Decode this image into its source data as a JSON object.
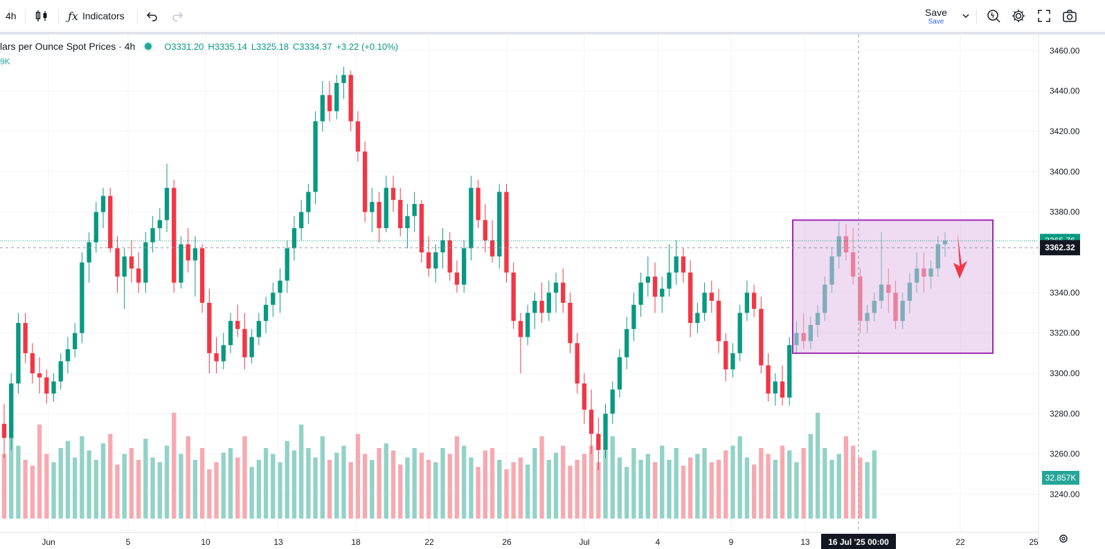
{
  "toolbar": {
    "interval": "4h",
    "indicators_label": "Indicators",
    "save_label": "Save",
    "save_sub": "Save"
  },
  "legend": {
    "symbol": "lars per Ounce Spot Prices · 4h",
    "open": "O3331.20",
    "high": "H3335.14",
    "low": "L3325.18",
    "close": "C3334.37",
    "change": "+3.22 (+0.10%)",
    "volume_fragment": "9K"
  },
  "colors": {
    "up": "#089981",
    "down": "#f23645",
    "vol_up": "#92d2c7",
    "vol_down": "#f7a9b0",
    "box_fill": "#e1bee7",
    "box_stroke": "#9c27b0",
    "arrow": "#f23645"
  },
  "chart_data": {
    "type": "candlestick",
    "title": "lars per Ounce Spot Prices · 4h",
    "ylim": [
      3228,
      3468
    ],
    "y_ticks": [
      "3460.00",
      "3440.00",
      "3420.00",
      "3400.00",
      "3380.00",
      "3360.00",
      "3340.00",
      "3320.00",
      "3300.00",
      "3280.00",
      "3260.00",
      "3240.00"
    ],
    "x_ticks": [
      "Jun",
      "5",
      "10",
      "13",
      "18",
      "22",
      "26",
      "Jul",
      "4",
      "9",
      "13",
      "22",
      "25"
    ],
    "last_price_label": "3365.76",
    "crosshair_price_label": "3362.32",
    "crosshair_date_label": "16 Jul '25   00:00",
    "volume_label": "32.857K",
    "last_price": 3365.76,
    "crosshair_price": 3362.32,
    "candles": [
      [
        3275,
        3285,
        3258,
        3268
      ],
      [
        3268,
        3300,
        3262,
        3295
      ],
      [
        3295,
        3330,
        3290,
        3325
      ],
      [
        3325,
        3330,
        3305,
        3310
      ],
      [
        3310,
        3315,
        3295,
        3300
      ],
      [
        3300,
        3308,
        3290,
        3298
      ],
      [
        3298,
        3302,
        3285,
        3290
      ],
      [
        3290,
        3300,
        3286,
        3296
      ],
      [
        3296,
        3310,
        3292,
        3306
      ],
      [
        3306,
        3318,
        3300,
        3312
      ],
      [
        3312,
        3325,
        3308,
        3320
      ],
      [
        3320,
        3360,
        3315,
        3355
      ],
      [
        3355,
        3370,
        3345,
        3365
      ],
      [
        3365,
        3385,
        3360,
        3380
      ],
      [
        3380,
        3392,
        3372,
        3388
      ],
      [
        3388,
        3392,
        3360,
        3362
      ],
      [
        3362,
        3368,
        3340,
        3348
      ],
      [
        3348,
        3362,
        3332,
        3358
      ],
      [
        3358,
        3366,
        3345,
        3352
      ],
      [
        3352,
        3360,
        3340,
        3345
      ],
      [
        3345,
        3370,
        3340,
        3365
      ],
      [
        3365,
        3378,
        3360,
        3372
      ],
      [
        3372,
        3382,
        3366,
        3376
      ],
      [
        3376,
        3404,
        3370,
        3392
      ],
      [
        3392,
        3396,
        3340,
        3345
      ],
      [
        3345,
        3368,
        3342,
        3364
      ],
      [
        3364,
        3372,
        3350,
        3356
      ],
      [
        3356,
        3368,
        3338,
        3362
      ],
      [
        3362,
        3364,
        3330,
        3335
      ],
      [
        3335,
        3342,
        3300,
        3310
      ],
      [
        3310,
        3318,
        3300,
        3306
      ],
      [
        3306,
        3320,
        3302,
        3314
      ],
      [
        3314,
        3330,
        3310,
        3326
      ],
      [
        3326,
        3334,
        3318,
        3322
      ],
      [
        3322,
        3330,
        3302,
        3308
      ],
      [
        3308,
        3322,
        3305,
        3318
      ],
      [
        3318,
        3330,
        3314,
        3326
      ],
      [
        3326,
        3338,
        3320,
        3334
      ],
      [
        3334,
        3345,
        3328,
        3340
      ],
      [
        3340,
        3352,
        3330,
        3346
      ],
      [
        3346,
        3366,
        3340,
        3362
      ],
      [
        3362,
        3378,
        3356,
        3372
      ],
      [
        3372,
        3386,
        3366,
        3380
      ],
      [
        3380,
        3394,
        3374,
        3390
      ],
      [
        3390,
        3430,
        3384,
        3425
      ],
      [
        3425,
        3445,
        3420,
        3438
      ],
      [
        3438,
        3445,
        3425,
        3430
      ],
      [
        3430,
        3448,
        3426,
        3444
      ],
      [
        3444,
        3452,
        3436,
        3448
      ],
      [
        3448,
        3450,
        3420,
        3425
      ],
      [
        3425,
        3430,
        3405,
        3410
      ],
      [
        3410,
        3415,
        3375,
        3380
      ],
      [
        3380,
        3392,
        3370,
        3385
      ],
      [
        3385,
        3390,
        3365,
        3372
      ],
      [
        3372,
        3398,
        3370,
        3392
      ],
      [
        3392,
        3398,
        3380,
        3386
      ],
      [
        3386,
        3392,
        3368,
        3372
      ],
      [
        3372,
        3384,
        3362,
        3378
      ],
      [
        3378,
        3390,
        3370,
        3384
      ],
      [
        3384,
        3386,
        3355,
        3360
      ],
      [
        3360,
        3368,
        3348,
        3352
      ],
      [
        3352,
        3364,
        3345,
        3360
      ],
      [
        3360,
        3372,
        3352,
        3366
      ],
      [
        3366,
        3370,
        3346,
        3350
      ],
      [
        3350,
        3356,
        3340,
        3344
      ],
      [
        3344,
        3366,
        3340,
        3362
      ],
      [
        3362,
        3398,
        3356,
        3392
      ],
      [
        3392,
        3396,
        3372,
        3376
      ],
      [
        3376,
        3384,
        3360,
        3366
      ],
      [
        3366,
        3376,
        3355,
        3358
      ],
      [
        3358,
        3394,
        3352,
        3390
      ],
      [
        3390,
        3394,
        3345,
        3350
      ],
      [
        3350,
        3355,
        3322,
        3326
      ],
      [
        3326,
        3330,
        3300,
        3318
      ],
      [
        3318,
        3334,
        3314,
        3330
      ],
      [
        3330,
        3340,
        3322,
        3336
      ],
      [
        3336,
        3345,
        3325,
        3330
      ],
      [
        3330,
        3346,
        3326,
        3340
      ],
      [
        3340,
        3350,
        3330,
        3345
      ],
      [
        3345,
        3352,
        3330,
        3335
      ],
      [
        3335,
        3340,
        3310,
        3315
      ],
      [
        3315,
        3320,
        3290,
        3295
      ],
      [
        3295,
        3300,
        3275,
        3282
      ],
      [
        3282,
        3292,
        3260,
        3270
      ],
      [
        3270,
        3278,
        3252,
        3262
      ],
      [
        3262,
        3285,
        3258,
        3280
      ],
      [
        3280,
        3296,
        3275,
        3292
      ],
      [
        3292,
        3312,
        3288,
        3308
      ],
      [
        3308,
        3328,
        3302,
        3322
      ],
      [
        3322,
        3340,
        3316,
        3334
      ],
      [
        3334,
        3350,
        3328,
        3345
      ],
      [
        3345,
        3358,
        3338,
        3348
      ],
      [
        3348,
        3355,
        3330,
        3338
      ],
      [
        3338,
        3348,
        3330,
        3342
      ],
      [
        3342,
        3364,
        3338,
        3350
      ],
      [
        3350,
        3366,
        3344,
        3358
      ],
      [
        3358,
        3362,
        3345,
        3350
      ],
      [
        3350,
        3356,
        3318,
        3325
      ],
      [
        3325,
        3335,
        3320,
        3330
      ],
      [
        3330,
        3345,
        3326,
        3340
      ],
      [
        3340,
        3346,
        3330,
        3336
      ],
      [
        3336,
        3342,
        3310,
        3316
      ],
      [
        3316,
        3320,
        3296,
        3302
      ],
      [
        3302,
        3315,
        3298,
        3310
      ],
      [
        3310,
        3334,
        3306,
        3330
      ],
      [
        3330,
        3346,
        3326,
        3340
      ],
      [
        3340,
        3344,
        3328,
        3332
      ],
      [
        3332,
        3338,
        3300,
        3304
      ],
      [
        3304,
        3310,
        3286,
        3290
      ],
      [
        3290,
        3300,
        3284,
        3296
      ],
      [
        3296,
        3304,
        3284,
        3288
      ],
      [
        3288,
        3318,
        3284,
        3314
      ],
      [
        3314,
        3326,
        3310,
        3320
      ],
      [
        3320,
        3330,
        3312,
        3316
      ],
      [
        3316,
        3328,
        3312,
        3324
      ],
      [
        3324,
        3334,
        3318,
        3330
      ],
      [
        3330,
        3348,
        3326,
        3344
      ],
      [
        3344,
        3362,
        3340,
        3358
      ],
      [
        3358,
        3375,
        3352,
        3368
      ],
      [
        3368,
        3374,
        3356,
        3360
      ],
      [
        3360,
        3372,
        3344,
        3348
      ],
      [
        3348,
        3352,
        3320,
        3326
      ],
      [
        3326,
        3334,
        3320,
        3330
      ],
      [
        3330,
        3340,
        3326,
        3336
      ],
      [
        3336,
        3370,
        3332,
        3344
      ],
      [
        3344,
        3352,
        3330,
        3340
      ],
      [
        3340,
        3346,
        3322,
        3326
      ],
      [
        3326,
        3340,
        3322,
        3336
      ],
      [
        3336,
        3350,
        3330,
        3345
      ],
      [
        3345,
        3360,
        3340,
        3352
      ],
      [
        3352,
        3360,
        3340,
        3348
      ],
      [
        3348,
        3356,
        3342,
        3352
      ],
      [
        3352,
        3368,
        3348,
        3364
      ],
      [
        3364,
        3370,
        3358,
        3365.76
      ]
    ],
    "volume": [
      0.55,
      0.7,
      0.62,
      0.5,
      0.45,
      0.8,
      0.55,
      0.48,
      0.6,
      0.66,
      0.52,
      0.7,
      0.58,
      0.5,
      0.64,
      0.72,
      0.46,
      0.55,
      0.6,
      0.5,
      0.68,
      0.52,
      0.48,
      0.62,
      0.9,
      0.55,
      0.7,
      0.5,
      0.6,
      0.42,
      0.48,
      0.56,
      0.6,
      0.52,
      0.7,
      0.44,
      0.5,
      0.6,
      0.55,
      0.48,
      0.66,
      0.58,
      0.8,
      0.6,
      0.52,
      0.7,
      0.5,
      0.56,
      0.62,
      0.48,
      0.72,
      0.55,
      0.5,
      0.6,
      0.64,
      0.58,
      0.46,
      0.52,
      0.6,
      0.56,
      0.5,
      0.48,
      0.6,
      0.55,
      0.7,
      0.62,
      0.52,
      0.44,
      0.58,
      0.6,
      0.5,
      0.42,
      0.48,
      0.52,
      0.46,
      0.6,
      0.7,
      0.5,
      0.56,
      0.62,
      0.45,
      0.5,
      0.55,
      0.62,
      0.48,
      0.58,
      0.7,
      0.52,
      0.44,
      0.6,
      0.5,
      0.55,
      0.48,
      0.62,
      0.5,
      0.6,
      0.45,
      0.52,
      0.55,
      0.6,
      0.48,
      0.5,
      0.58,
      0.62,
      0.7,
      0.52,
      0.46,
      0.6,
      0.55,
      0.5,
      0.62,
      0.58,
      0.48,
      0.6,
      0.72,
      0.9,
      0.6,
      0.5,
      0.55,
      0.7,
      0.62,
      0.52,
      0.48,
      0.58
    ]
  }
}
